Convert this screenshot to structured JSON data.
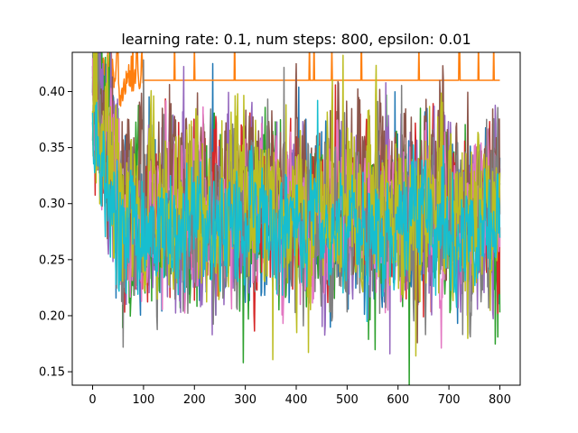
{
  "chart_data": {
    "type": "line",
    "title": "learning rate: 0.1, num steps: 800, epsilon: 0.01",
    "xlabel": "",
    "ylabel": "",
    "xlim": [
      -40,
      840
    ],
    "ylim": [
      0.138,
      0.435
    ],
    "x_ticks": [
      0,
      100,
      200,
      300,
      400,
      500,
      600,
      700,
      800
    ],
    "y_ticks": [
      0.15,
      0.2,
      0.25,
      0.3,
      0.35,
      0.4
    ],
    "x_tick_labels": [
      "0",
      "100",
      "200",
      "300",
      "400",
      "500",
      "600",
      "700",
      "800"
    ],
    "y_tick_labels": [
      "0.15",
      "0.20",
      "0.25",
      "0.30",
      "0.35",
      "0.40"
    ],
    "grid": false,
    "legend": "none",
    "num_steps": 800,
    "series": [
      {
        "color": "#1f77b4",
        "center": 0.292,
        "amplitude": 0.052,
        "start": 0.4
      },
      {
        "color": "#ff7f0e",
        "center": 0.41,
        "amplitude": 0.018,
        "start": 0.43,
        "converged_from": 100,
        "converged_value": 0.41
      },
      {
        "color": "#2ca02c",
        "center": 0.286,
        "amplitude": 0.055,
        "start": 0.42
      },
      {
        "color": "#d62728",
        "center": 0.294,
        "amplitude": 0.054,
        "start": 0.395
      },
      {
        "color": "#9467bd",
        "center": 0.29,
        "amplitude": 0.056,
        "start": 0.41
      },
      {
        "color": "#8c564b",
        "center": 0.316,
        "amplitude": 0.05,
        "start": 0.4
      },
      {
        "color": "#e377c2",
        "center": 0.288,
        "amplitude": 0.052,
        "start": 0.37
      },
      {
        "color": "#7f7f7f",
        "center": 0.28,
        "amplitude": 0.052,
        "start": 0.39
      },
      {
        "color": "#bcbd22",
        "center": 0.296,
        "amplitude": 0.058,
        "start": 0.38
      },
      {
        "color": "#17becf",
        "center": 0.279,
        "amplitude": 0.042,
        "start": 0.35
      }
    ]
  }
}
